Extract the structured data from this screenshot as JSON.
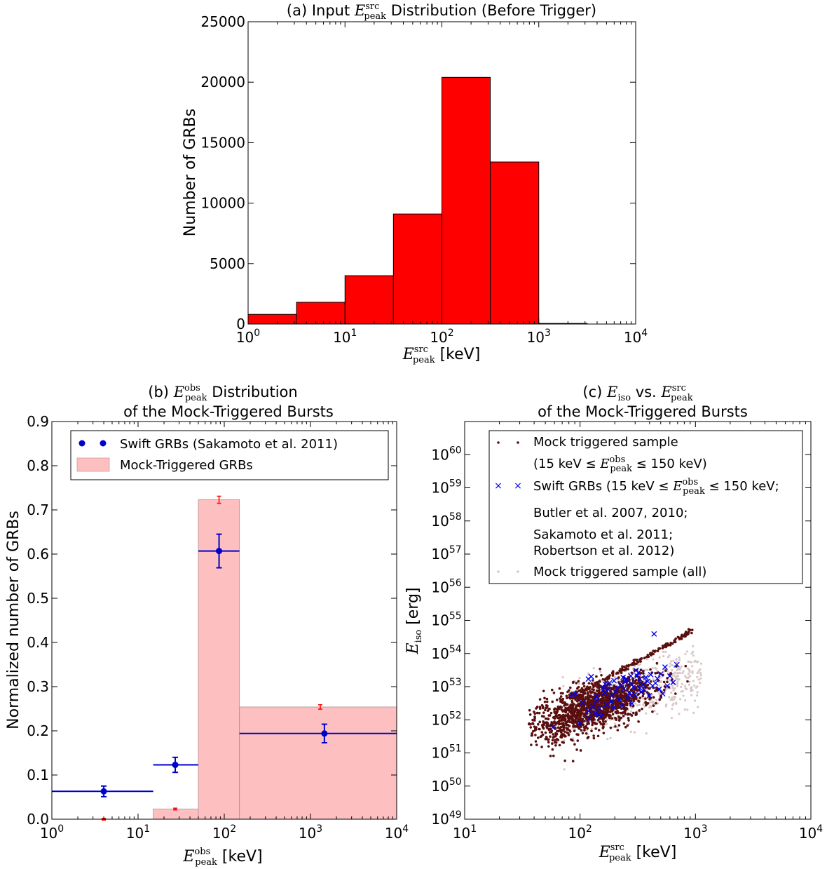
{
  "chart_data": [
    {
      "id": "a",
      "type": "bar",
      "title": {
        "prefix": "(a) Input ",
        "sym": "E",
        "sup": "src",
        "sub": "peak",
        "suffix": " Distribution (Before Trigger)"
      },
      "xlabel": {
        "sym": "E",
        "sup": "src",
        "sub": "peak",
        "unit": " [keV]"
      },
      "ylabel": "Number of GRBs",
      "xscale": "log",
      "xlim": [
        1,
        10000
      ],
      "ylim": [
        0,
        25000
      ],
      "xticks": [
        {
          "base": "10",
          "exp": "0"
        },
        {
          "base": "10",
          "exp": "1"
        },
        {
          "base": "10",
          "exp": "2"
        },
        {
          "base": "10",
          "exp": "3"
        },
        {
          "base": "10",
          "exp": "4"
        }
      ],
      "yticks": [
        "0",
        "5000",
        "10000",
        "15000",
        "20000",
        "25000"
      ],
      "bar_color": "#ff0000",
      "bins": [
        {
          "x0": 1,
          "x1": 3.16,
          "value": 800
        },
        {
          "x0": 3.16,
          "x1": 10,
          "value": 1800
        },
        {
          "x0": 10,
          "x1": 31.6,
          "value": 4000
        },
        {
          "x0": 31.6,
          "x1": 100,
          "value": 9100
        },
        {
          "x0": 100,
          "x1": 316,
          "value": 20400
        },
        {
          "x0": 316,
          "x1": 1000,
          "value": 13400
        },
        {
          "x0": 1000,
          "x1": 3160,
          "value": 50
        }
      ]
    },
    {
      "id": "b",
      "type": "bar",
      "title_line1": {
        "prefix": "(b) ",
        "sym": "E",
        "sup": "obs",
        "sub": "peak",
        "suffix": " Distribution"
      },
      "title_line2": "of the Mock-Triggered Bursts",
      "xlabel": {
        "sym": "E",
        "sup": "obs",
        "sub": "peak",
        "unit": " [keV]"
      },
      "ylabel": "Normalized number of GRBs",
      "xscale": "log",
      "xlim": [
        1,
        10000
      ],
      "ylim": [
        0,
        0.9
      ],
      "xticks": [
        {
          "base": "10",
          "exp": "0"
        },
        {
          "base": "10",
          "exp": "1"
        },
        {
          "base": "10",
          "exp": "2"
        },
        {
          "base": "10",
          "exp": "3"
        },
        {
          "base": "10",
          "exp": "4"
        }
      ],
      "yticks": [
        "0.0",
        "0.1",
        "0.2",
        "0.3",
        "0.4",
        "0.5",
        "0.6",
        "0.7",
        "0.8",
        "0.9"
      ],
      "legend": [
        "Swift GRBs (Sakamoto et al. 2011)",
        "Mock-Triggered GRBs"
      ],
      "legend_position": "top-right",
      "mock_bins": [
        {
          "x0": 1,
          "x1": 15,
          "value": 0.0,
          "err": 0.002
        },
        {
          "x0": 15,
          "x1": 50,
          "value": 0.023,
          "err": 0.002
        },
        {
          "x0": 50,
          "x1": 150,
          "value": 0.723,
          "err": 0.008
        },
        {
          "x0": 150,
          "x1": 10000,
          "value": 0.254,
          "err": 0.005
        }
      ],
      "mock_err_x": [
        4,
        27,
        87,
        1300
      ],
      "swift_points": [
        {
          "x": 4,
          "y": 0.063,
          "xlo": 1,
          "xhi": 15,
          "yerr": 0.012
        },
        {
          "x": 27,
          "y": 0.123,
          "xlo": 15,
          "xhi": 50,
          "yerr": 0.017
        },
        {
          "x": 87,
          "y": 0.607,
          "xlo": 50,
          "xhi": 150,
          "yerr": 0.038
        },
        {
          "x": 1450,
          "y": 0.194,
          "xlo": 150,
          "xhi": 10000,
          "yerr": 0.021
        }
      ],
      "colors": {
        "mock_fill": "#fdbfbf",
        "mock_err": "#ff0000",
        "swift": "#0000cc"
      }
    },
    {
      "id": "c",
      "type": "scatter",
      "title_line1": {
        "prefix": "(c) ",
        "sym": "E",
        "sub1": "iso",
        "mid": " vs. ",
        "sym2": "E",
        "sup2": "src",
        "sub2": "peak"
      },
      "title_line2": "of the Mock-Triggered Bursts",
      "xlabel": {
        "sym": "E",
        "sup": "src",
        "sub": "peak",
        "unit": " [keV]"
      },
      "ylabel": {
        "sym": "E",
        "sub": "iso",
        "unit": " [erg]"
      },
      "xscale": "log",
      "yscale": "log",
      "xlim": [
        10,
        10000
      ],
      "ylim": [
        1e+49,
        1e+61
      ],
      "xticks": [
        {
          "base": "10",
          "exp": "1"
        },
        {
          "base": "10",
          "exp": "2"
        },
        {
          "base": "10",
          "exp": "3"
        },
        {
          "base": "10",
          "exp": "4"
        }
      ],
      "yticks": [
        {
          "base": "10",
          "exp": "49"
        },
        {
          "base": "10",
          "exp": "50"
        },
        {
          "base": "10",
          "exp": "51"
        },
        {
          "base": "10",
          "exp": "52"
        },
        {
          "base": "10",
          "exp": "53"
        },
        {
          "base": "10",
          "exp": "54"
        },
        {
          "base": "10",
          "exp": "55"
        },
        {
          "base": "10",
          "exp": "56"
        },
        {
          "base": "10",
          "exp": "57"
        },
        {
          "base": "10",
          "exp": "58"
        },
        {
          "base": "10",
          "exp": "59"
        },
        {
          "base": "10",
          "exp": "60"
        }
      ],
      "legend": {
        "entry1": "Mock triggered sample",
        "entry1_cond": {
          "pre": "(15 keV ≤ ",
          "sym": "E",
          "sup": "obs",
          "sub": "peak",
          "post": " ≤ 150 keV)"
        },
        "entry2": {
          "pre": "Swift GRBs (15 keV ≤ ",
          "sym": "E",
          "sup": "obs",
          "sub": "peak",
          "post": " ≤ 150 keV;"
        },
        "entry2_refs": [
          "Butler et al. 2007, 2010;",
          "Sakamoto et al. 2011;",
          "Robertson et al. 2012)"
        ],
        "entry3": "Mock triggered sample (all)"
      },
      "legend_position": "top-right",
      "colors": {
        "mock": "#5a0e0e",
        "all": "#d9c7c7",
        "swift": "#0000ee"
      },
      "swift_points": [
        [
          58,
          5.9e+51
        ],
        [
          85,
          5.6e+52
        ],
        [
          92,
          6e+52
        ],
        [
          100,
          7.8e+51
        ],
        [
          105,
          3.2e+52
        ],
        [
          118,
          1.7e+53
        ],
        [
          120,
          1.1e+52
        ],
        [
          125,
          2e+53
        ],
        [
          130,
          2.5e+52
        ],
        [
          135,
          1.6e+52
        ],
        [
          138,
          4.9e+52
        ],
        [
          145,
          1.4e+52
        ],
        [
          148,
          2.2e+52
        ],
        [
          152,
          1.3e+52
        ],
        [
          158,
          9.5e+52
        ],
        [
          165,
          1.2e+53
        ],
        [
          170,
          2.8e+52
        ],
        [
          176,
          8.2e+52
        ],
        [
          180,
          1.3e+53
        ],
        [
          186,
          3.6e+52
        ],
        [
          190,
          5.4e+52
        ],
        [
          197,
          1.5e+53
        ],
        [
          205,
          7.1e+52
        ],
        [
          210,
          9e+52
        ],
        [
          218,
          4.1e+52
        ],
        [
          225,
          1.1e+53
        ],
        [
          232,
          2.7e+52
        ],
        [
          240,
          8.7e+52
        ],
        [
          245,
          1.4e+53
        ],
        [
          252,
          1.65e+53
        ],
        [
          260,
          4.6e+52
        ],
        [
          268,
          6.3e+52
        ],
        [
          275,
          1.25e+53
        ],
        [
          282,
          3.1e+52
        ],
        [
          290,
          9.8e+52
        ],
        [
          298,
          5.7e+52
        ],
        [
          305,
          3.1e+53
        ],
        [
          312,
          2.1e+53
        ],
        [
          320,
          2.6e+53
        ],
        [
          330,
          1.7e+53
        ],
        [
          340,
          6.9e+52
        ],
        [
          350,
          1.15e+53
        ],
        [
          360,
          8.1e+52
        ],
        [
          372,
          1.9e+53
        ],
        [
          385,
          1.45e+53
        ],
        [
          398,
          5.3e+52
        ],
        [
          410,
          2.3e+53
        ],
        [
          425,
          1.05e+53
        ],
        [
          438,
          3.9e+54
        ],
        [
          450,
          1.28e+53
        ],
        [
          468,
          1.75e+53
        ],
        [
          485,
          8.4e+52
        ],
        [
          500,
          2.4e+53
        ],
        [
          520,
          6.1e+52
        ],
        [
          545,
          3.9e+53
        ],
        [
          570,
          1.05e+53
        ],
        [
          600,
          2.1e+53
        ],
        [
          640,
          1.35e+53
        ],
        [
          690,
          4.6e+53
        ],
        [
          118,
          1.85e+52
        ],
        [
          140,
          3.9e+52
        ],
        [
          196,
          2.4e+52
        ],
        [
          236,
          1.9e+53
        ],
        [
          330,
          9.2e+52
        ],
        [
          275,
          2.1e+53
        ],
        [
          162,
          6.7e+52
        ]
      ],
      "mock_band": {
        "slope": 1.15,
        "ref_x": 300,
        "ref_y": 6e+52,
        "x_lo": 35,
        "x_hi": 1000
      },
      "upper_track": {
        "x0": 80,
        "y0": 4.2e+52,
        "x1": 950,
        "y1": 5e+54
      }
    }
  ]
}
